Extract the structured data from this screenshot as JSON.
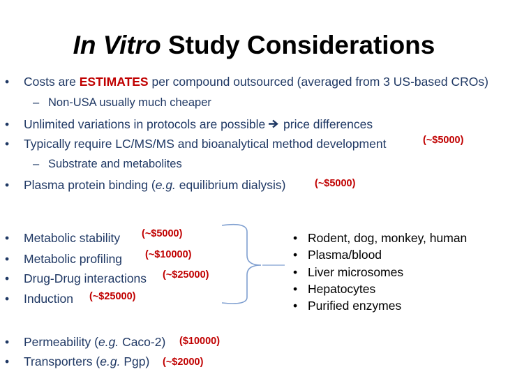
{
  "title": {
    "italic": "In Vitro",
    "rest": " Study Considerations"
  },
  "bullets": [
    {
      "pre": "Costs are ",
      "emph": "ESTIMATES",
      "post": " per compound outsourced (averaged from 3 US-based CROs)"
    },
    {
      "sub": "Non-USA usually much cheaper"
    },
    {
      "pre": "Unlimited variations in protocols are possible ",
      "arrow": "→",
      "post": " price differences"
    },
    {
      "text": "Typically require LC/MS/MS and bioanalytical method development",
      "price": "(~$5000)"
    },
    {
      "sub": "Substrate and metabolites"
    },
    {
      "pre": "Plasma protein binding (",
      "ital": "e.g.",
      "post": " equilibrium dialysis)",
      "price": "(~$5000)"
    }
  ],
  "assays": [
    {
      "text": "Metabolic stability",
      "price": "(~$5000)"
    },
    {
      "text": "Metabolic profiling",
      "price": "(~$10000)"
    },
    {
      "text": "Drug-Drug interactions",
      "price": "(~$25000)"
    },
    {
      "text": "Induction",
      "price": "(~$25000)"
    }
  ],
  "systems": [
    "Rodent, dog, monkey, human",
    "Plasma/blood",
    "Liver microsomes",
    "Hepatocytes",
    "Purified enzymes"
  ],
  "other": [
    {
      "pre": "Permeability (",
      "ital": "e.g.",
      "post": " Caco-2)",
      "price": "($10000)"
    },
    {
      "pre": "Transporters (",
      "ital": "e.g.",
      "post": " Pgp)",
      "price": "(~$2000)"
    }
  ],
  "bullet_glyph": "•",
  "dash_glyph": "–",
  "colors": {
    "text": "#1f3864",
    "price": "#c00000",
    "title": "#000000"
  }
}
